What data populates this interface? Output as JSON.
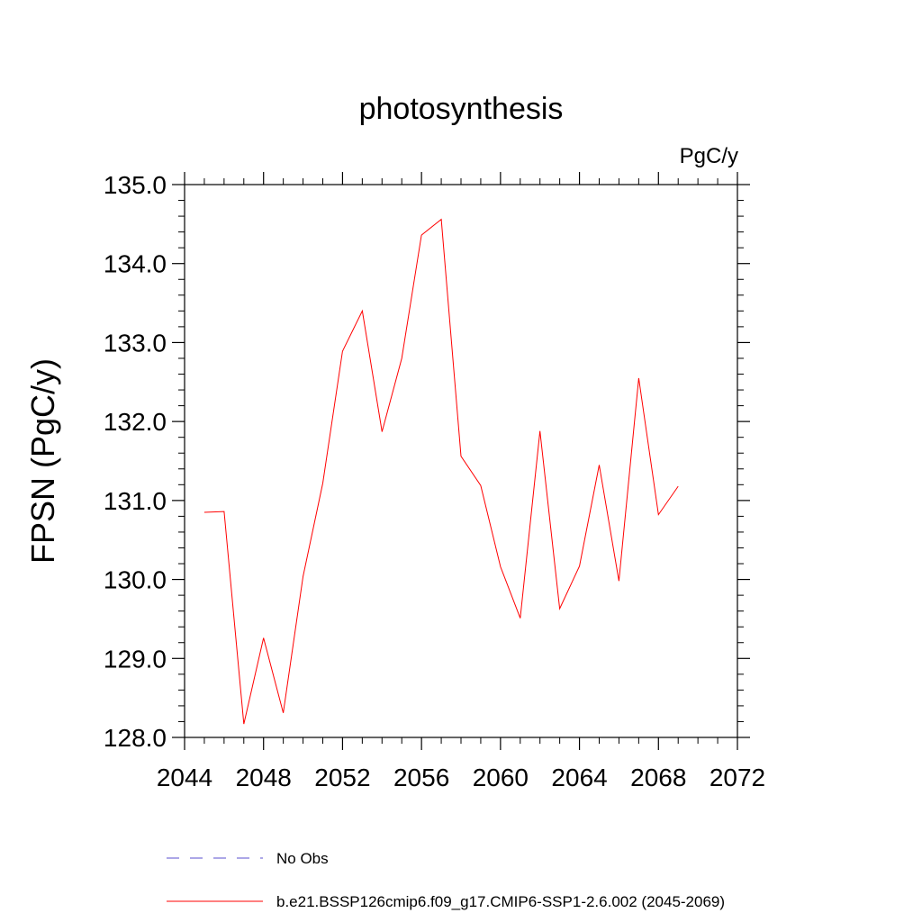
{
  "chart_data": {
    "type": "line",
    "title": "photosynthesis",
    "units_label": "PgC/y",
    "ylabel": "FPSN  (PgC/y)",
    "xlabel": "",
    "xlim": [
      2044,
      2072
    ],
    "ylim": [
      128.0,
      135.0
    ],
    "xticks": [
      "2044",
      "2048",
      "2052",
      "2056",
      "2060",
      "2064",
      "2068",
      "2072"
    ],
    "yticks": [
      "128.0",
      "129.0",
      "130.0",
      "131.0",
      "132.0",
      "133.0",
      "134.0",
      "135.0"
    ],
    "grid": false,
    "legend_position": "bottom",
    "series": [
      {
        "name": "b.e21.BSSP126cmip6.f09_g17.CMIP6-SSP1-2.6.002 (2045-2069)",
        "color": "#ff0000",
        "style": "solid",
        "x": [
          2045,
          2046,
          2047,
          2048,
          2049,
          2050,
          2051,
          2052,
          2053,
          2054,
          2055,
          2056,
          2057,
          2058,
          2059,
          2060,
          2061,
          2062,
          2063,
          2064,
          2065,
          2066,
          2067,
          2068,
          2069
        ],
        "values": [
          130.85,
          130.86,
          128.17,
          129.26,
          128.31,
          130.04,
          131.22,
          132.89,
          133.4,
          131.87,
          132.8,
          134.36,
          134.56,
          131.56,
          131.19,
          130.16,
          129.51,
          131.88,
          129.63,
          130.17,
          131.45,
          129.98,
          132.55,
          130.82,
          131.18
        ]
      }
    ],
    "legend": [
      {
        "label": "No Obs",
        "color": "#5a4fcf",
        "style": "dashed"
      },
      {
        "label": "b.e21.BSSP126cmip6.f09_g17.CMIP6-SSP1-2.6.002 (2045-2069)",
        "color": "#ff0000",
        "style": "solid"
      }
    ]
  }
}
